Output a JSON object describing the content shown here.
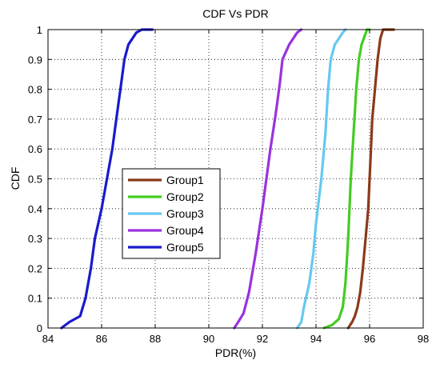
{
  "chart_data": {
    "type": "line",
    "title": "CDF Vs PDR",
    "xlabel": "PDR(%)",
    "ylabel": "CDF",
    "xlim": [
      84,
      98
    ],
    "ylim": [
      0,
      1
    ],
    "xticks": [
      "84",
      "86",
      "88",
      "90",
      "92",
      "94",
      "96",
      "98"
    ],
    "yticks": [
      "0",
      "0.1",
      "0.2",
      "0.3",
      "0.4",
      "0.5",
      "0.6",
      "0.7",
      "0.8",
      "0.9",
      "1"
    ],
    "grid": true,
    "legend_position": "center-left",
    "series": [
      {
        "name": "Group1",
        "color": "#8B3A1A",
        "points": [
          [
            95.2,
            0.0
          ],
          [
            95.35,
            0.02
          ],
          [
            95.45,
            0.04
          ],
          [
            95.55,
            0.07
          ],
          [
            95.65,
            0.12
          ],
          [
            95.75,
            0.2
          ],
          [
            95.85,
            0.3
          ],
          [
            95.95,
            0.4
          ],
          [
            96.0,
            0.5
          ],
          [
            96.05,
            0.6
          ],
          [
            96.1,
            0.7
          ],
          [
            96.2,
            0.8
          ],
          [
            96.3,
            0.9
          ],
          [
            96.4,
            0.97
          ],
          [
            96.5,
            1.0
          ],
          [
            96.9,
            1.0
          ]
        ]
      },
      {
        "name": "Group2",
        "color": "#44CC22",
        "points": [
          [
            94.3,
            0.0
          ],
          [
            94.6,
            0.01
          ],
          [
            94.85,
            0.03
          ],
          [
            95.0,
            0.07
          ],
          [
            95.1,
            0.15
          ],
          [
            95.2,
            0.3
          ],
          [
            95.3,
            0.5
          ],
          [
            95.4,
            0.65
          ],
          [
            95.5,
            0.8
          ],
          [
            95.6,
            0.9
          ],
          [
            95.7,
            0.95
          ],
          [
            95.9,
            1.0
          ],
          [
            96.0,
            1.0
          ]
        ]
      },
      {
        "name": "Group3",
        "color": "#66C8F0",
        "points": [
          [
            93.3,
            0.0
          ],
          [
            93.45,
            0.02
          ],
          [
            93.55,
            0.07
          ],
          [
            93.75,
            0.15
          ],
          [
            93.9,
            0.25
          ],
          [
            94.0,
            0.35
          ],
          [
            94.2,
            0.5
          ],
          [
            94.35,
            0.65
          ],
          [
            94.45,
            0.8
          ],
          [
            94.55,
            0.9
          ],
          [
            94.7,
            0.95
          ],
          [
            95.0,
            0.99
          ],
          [
            95.1,
            1.0
          ]
        ]
      },
      {
        "name": "Group4",
        "color": "#9933DD",
        "points": [
          [
            90.95,
            0.0
          ],
          [
            91.1,
            0.02
          ],
          [
            91.3,
            0.05
          ],
          [
            91.5,
            0.12
          ],
          [
            91.75,
            0.25
          ],
          [
            92.0,
            0.4
          ],
          [
            92.15,
            0.5
          ],
          [
            92.3,
            0.6
          ],
          [
            92.5,
            0.72
          ],
          [
            92.65,
            0.82
          ],
          [
            92.75,
            0.9
          ],
          [
            93.0,
            0.95
          ],
          [
            93.3,
            0.99
          ],
          [
            93.45,
            1.0
          ]
        ]
      },
      {
        "name": "Group5",
        "color": "#1A1ACC",
        "points": [
          [
            84.5,
            0.0
          ],
          [
            84.8,
            0.02
          ],
          [
            85.2,
            0.04
          ],
          [
            85.4,
            0.1
          ],
          [
            85.6,
            0.2
          ],
          [
            85.75,
            0.3
          ],
          [
            86.0,
            0.4
          ],
          [
            86.2,
            0.5
          ],
          [
            86.4,
            0.6
          ],
          [
            86.55,
            0.7
          ],
          [
            86.7,
            0.8
          ],
          [
            86.85,
            0.9
          ],
          [
            87.0,
            0.95
          ],
          [
            87.3,
            0.99
          ],
          [
            87.5,
            1.0
          ],
          [
            87.9,
            1.0
          ]
        ]
      }
    ]
  }
}
